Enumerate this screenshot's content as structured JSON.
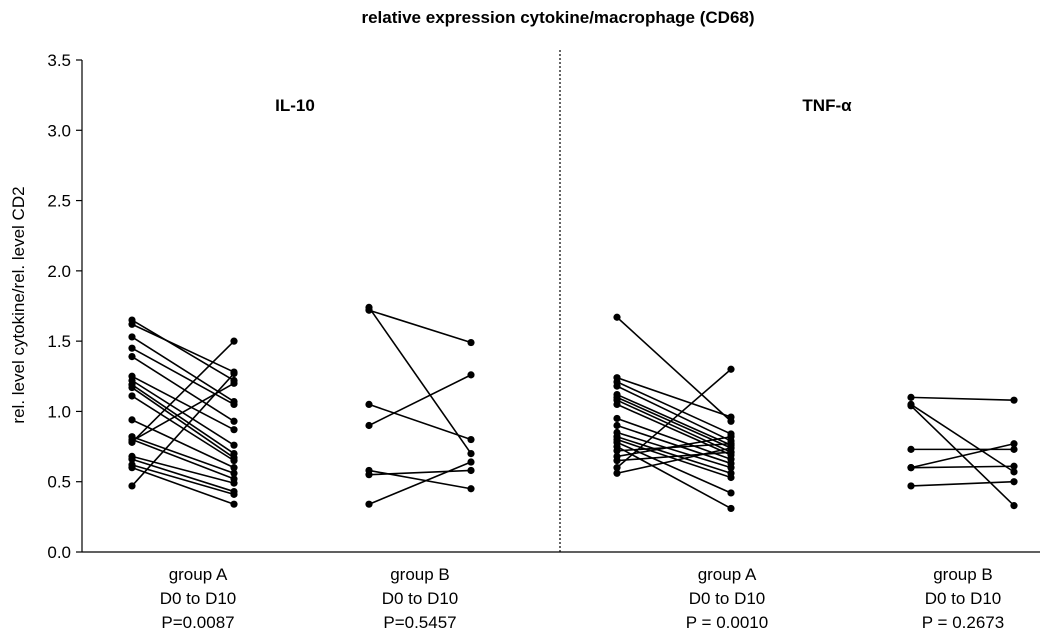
{
  "chart_data": {
    "type": "line",
    "title": "relative expression cytokine/macrophage (CD68)",
    "ylabel": "rel. level cytokine/rel. level CD2",
    "ylim": [
      0,
      3.5
    ],
    "yticks": [
      "0.0",
      "0.5",
      "1.0",
      "1.5",
      "2.0",
      "2.5",
      "3.0",
      "3.5"
    ],
    "grid": false,
    "panels": [
      {
        "title": "IL-10",
        "groups": [
          {
            "label": [
              "group  A",
              "D0 to D10",
              "P=0.0087"
            ],
            "pairs": [
              [
                1.65,
                1.22
              ],
              [
                1.62,
                1.28
              ],
              [
                1.53,
                1.07
              ],
              [
                1.45,
                1.05
              ],
              [
                1.39,
                0.93
              ],
              [
                1.25,
                0.87
              ],
              [
                1.22,
                0.76
              ],
              [
                1.19,
                0.7
              ],
              [
                1.17,
                0.67
              ],
              [
                1.11,
                0.65
              ],
              [
                0.94,
                0.6
              ],
              [
                0.82,
                0.56
              ],
              [
                0.8,
                0.52
              ],
              [
                0.79,
                1.2
              ],
              [
                0.78,
                1.5
              ],
              [
                0.68,
                0.49
              ],
              [
                0.66,
                0.43
              ],
              [
                0.62,
                0.41
              ],
              [
                0.6,
                0.34
              ],
              [
                0.47,
                1.27
              ]
            ]
          },
          {
            "label": [
              "group  B",
              "D0 to D10",
              "P=0.5457"
            ],
            "pairs": [
              [
                1.74,
                0.7
              ],
              [
                1.72,
                1.49
              ],
              [
                1.05,
                0.8
              ],
              [
                0.9,
                1.26
              ],
              [
                0.58,
                0.45
              ],
              [
                0.55,
                0.58
              ],
              [
                0.34,
                0.64
              ]
            ]
          }
        ]
      },
      {
        "title": "TNF-α",
        "groups": [
          {
            "label": [
              "group  A",
              "D0 to D10",
              "P = 0.0010"
            ],
            "pairs": [
              [
                1.67,
                0.93
              ],
              [
                1.24,
                0.96
              ],
              [
                1.21,
                0.84
              ],
              [
                1.18,
                0.79
              ],
              [
                1.12,
                0.76
              ],
              [
                1.1,
                0.74
              ],
              [
                1.08,
                0.71
              ],
              [
                1.05,
                0.69
              ],
              [
                0.95,
                0.66
              ],
              [
                0.9,
                0.63
              ],
              [
                0.85,
                0.6
              ],
              [
                0.82,
                0.56
              ],
              [
                0.8,
                0.53
              ],
              [
                0.78,
                0.42
              ],
              [
                0.75,
                0.31
              ],
              [
                0.72,
                0.77
              ],
              [
                0.68,
                0.82
              ],
              [
                0.65,
                0.71
              ],
              [
                0.6,
                1.3
              ],
              [
                0.56,
                0.74
              ]
            ]
          },
          {
            "label": [
              "group  B",
              "D0 to D10",
              "P = 0.2673"
            ],
            "pairs": [
              [
                1.1,
                1.08
              ],
              [
                1.05,
                0.57
              ],
              [
                1.04,
                0.33
              ],
              [
                0.73,
                0.73
              ],
              [
                0.6,
                0.77
              ],
              [
                0.6,
                0.61
              ],
              [
                0.47,
                0.5
              ]
            ]
          }
        ]
      }
    ]
  }
}
